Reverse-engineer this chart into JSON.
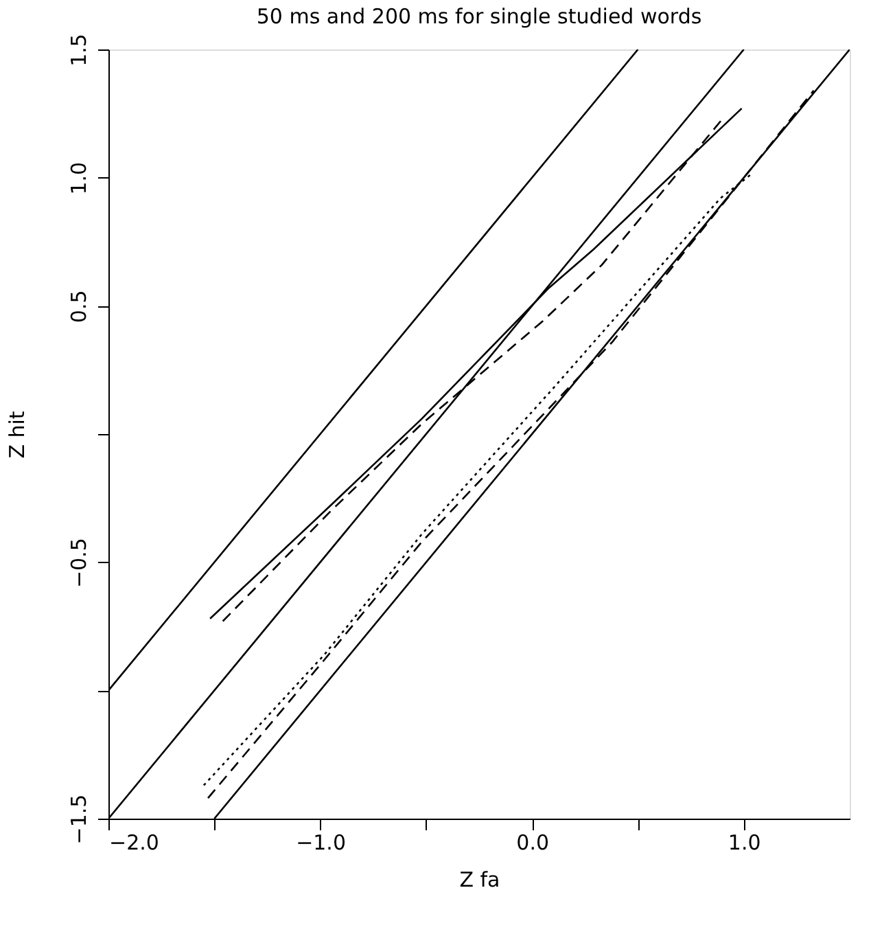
{
  "chart_data": {
    "type": "line",
    "title": "50 ms and 200 ms for single studied words",
    "xlabel": "Z fa",
    "ylabel": "Z hit",
    "xlim": [
      -2.0,
      1.5
    ],
    "ylim": [
      -1.5,
      1.5
    ],
    "xticks": [
      {
        "value": -2.0,
        "label": "−2.0"
      },
      {
        "value": -1.5,
        "label": null
      },
      {
        "value": -1.0,
        "label": "−1.0"
      },
      {
        "value": -0.5,
        "label": null
      },
      {
        "value": 0.0,
        "label": "0.0"
      },
      {
        "value": 0.5,
        "label": null
      },
      {
        "value": 1.0,
        "label": "1.0"
      }
    ],
    "yticks": [
      {
        "value": -1.5,
        "label": "−1.5"
      },
      {
        "value": -1.0,
        "label": null
      },
      {
        "value": -0.5,
        "label": "−0.5"
      },
      {
        "value": 0.0,
        "label": null
      },
      {
        "value": 0.5,
        "label": "0.5"
      },
      {
        "value": 1.0,
        "label": "1.0"
      },
      {
        "value": 1.5,
        "label": "1.5"
      }
    ],
    "grid": false,
    "marker": "none",
    "series": [
      {
        "color": "#000000",
        "line_style": "solid",
        "x": [
          -2.0,
          0.5
        ],
        "values": [
          -1.0,
          1.5
        ]
      },
      {
        "color": "#000000",
        "line_style": "solid",
        "x": [
          -2.0,
          1.0
        ],
        "values": [
          -1.5,
          1.5
        ]
      },
      {
        "color": "#000000",
        "line_style": "solid",
        "x": [
          -1.5,
          1.5
        ],
        "values": [
          -1.5,
          1.5
        ]
      },
      {
        "color": "#000000",
        "line_style": "solid",
        "x": [
          -1.52,
          -0.94,
          -0.52,
          0.08,
          0.29,
          0.99
        ],
        "values": [
          -0.72,
          -0.27,
          0.06,
          0.57,
          0.72,
          1.27
        ]
      },
      {
        "color": "#000000",
        "line_style": "dashed",
        "x": [
          -1.46,
          -0.95,
          -0.52,
          0.05,
          0.33,
          0.91
        ],
        "values": [
          -0.73,
          -0.3,
          0.04,
          0.44,
          0.66,
          1.24
        ]
      },
      {
        "color": "#000000",
        "line_style": "dotted",
        "x": [
          -1.55,
          -0.98,
          -0.52,
          0.08,
          0.89,
          1.03
        ],
        "values": [
          -1.37,
          -0.86,
          -0.39,
          0.16,
          0.92,
          1.01
        ]
      },
      {
        "color": "#000000",
        "line_style": "dashed",
        "x": [
          -1.53,
          -0.98,
          -0.52,
          0.38,
          1.33
        ],
        "values": [
          -1.42,
          -0.88,
          -0.42,
          0.36,
          1.34
        ]
      }
    ]
  }
}
